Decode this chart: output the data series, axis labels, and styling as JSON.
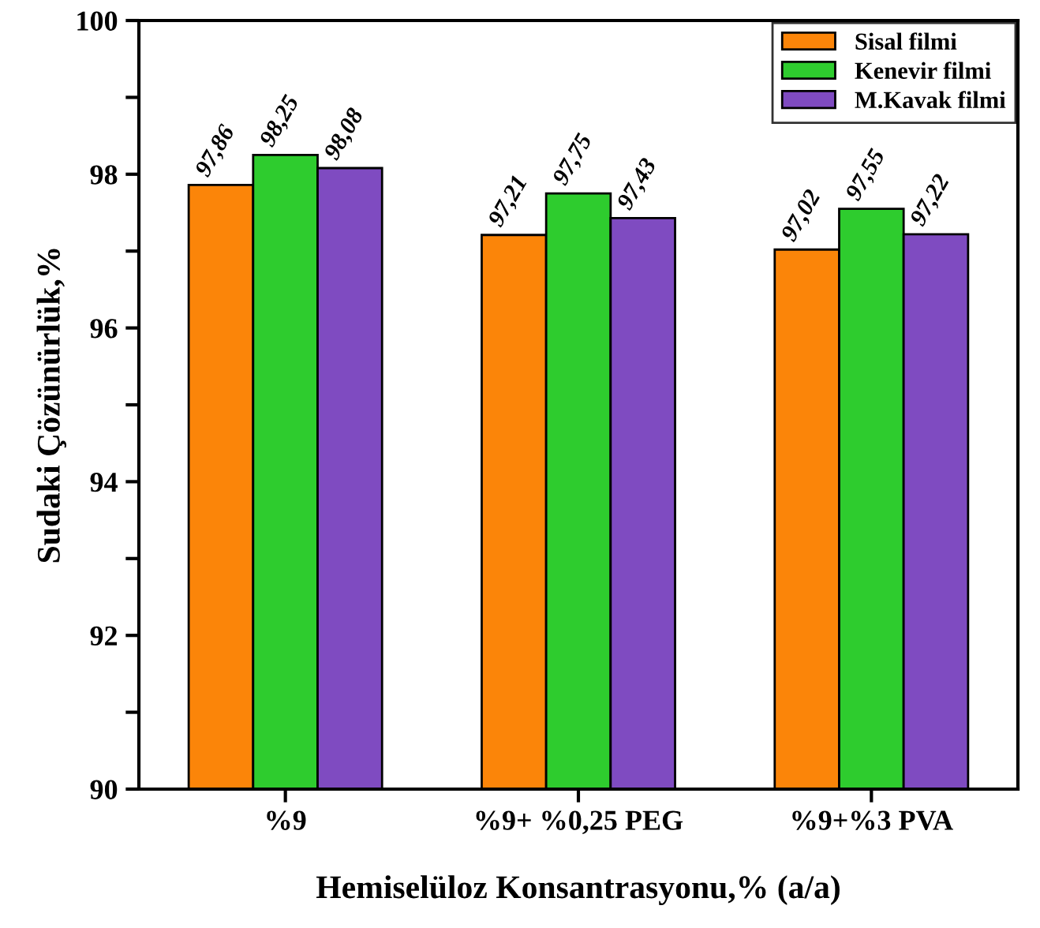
{
  "chart_data": {
    "type": "bar",
    "xlabel": "Hemiselüloz Konsantrasyonu,% (a/a)",
    "ylabel": "Sudaki Çözünürlük,%",
    "categories": [
      "%9",
      "%9+ %0,25 PEG",
      "%9+%3 PVA"
    ],
    "series": [
      {
        "name": "Sisal filmi",
        "color": "#fb8509",
        "values": [
          97.86,
          97.21,
          97.02
        ],
        "value_labels": [
          "97,86",
          "97,21",
          "97,02"
        ]
      },
      {
        "name": "Kenevir filmi",
        "color": "#2ecc2e",
        "values": [
          98.25,
          97.75,
          97.55
        ],
        "value_labels": [
          "98,25",
          "97,75",
          "97,55"
        ]
      },
      {
        "name": "M.Kavak filmi",
        "color": "#7f4bc1",
        "values": [
          98.08,
          97.43,
          97.22
        ],
        "value_labels": [
          "98,08",
          "97,43",
          "97,22"
        ]
      }
    ],
    "ylim": [
      90,
      100
    ],
    "yticks": [
      90,
      {
        "value": 91,
        "label": null
      },
      92,
      {
        "value": 93,
        "label": null
      },
      94,
      {
        "value": 95,
        "label": null
      },
      96,
      {
        "value": 97,
        "label": null
      },
      98,
      {
        "value": 99,
        "label": null
      },
      100
    ],
    "grid": false,
    "legend": "top right"
  }
}
